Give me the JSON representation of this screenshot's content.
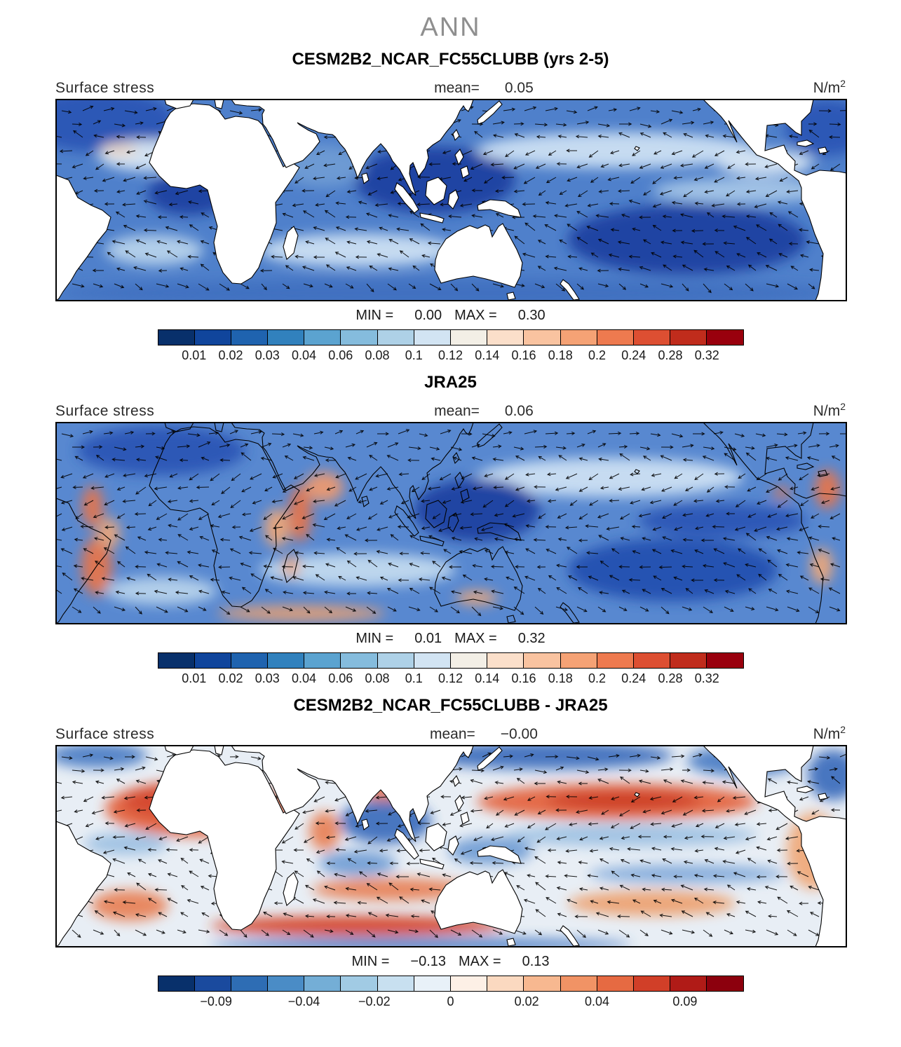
{
  "figure": {
    "suptitle": "ANN"
  },
  "panels": [
    {
      "title": "CESM2B2_NCAR_FC55CLUBB (yrs 2-5)",
      "field_label": "Surface stress",
      "mean_label": "mean=",
      "mean_value": "0.05",
      "units_base": "N/m",
      "units_exp": "2",
      "min_label": "MIN =",
      "min_value": "0.00",
      "max_label": "MAX =",
      "max_value": "0.30",
      "colorbar": {
        "colors": [
          "#08306b",
          "#10459c",
          "#1f63af",
          "#3181bd",
          "#5ba3d0",
          "#85bcdd",
          "#aed1e7",
          "#d2e4f3",
          "#f3efe6",
          "#fbdfca",
          "#f9c3a0",
          "#f5a275",
          "#ee7a4f",
          "#dd4f32",
          "#c02c1c",
          "#99000d"
        ],
        "labels": [
          "0.01",
          "0.02",
          "0.03",
          "0.04",
          "0.06",
          "0.08",
          "0.1",
          "0.12",
          "0.14",
          "0.16",
          "0.18",
          "0.2",
          "0.24",
          "0.28",
          "0.32"
        ]
      }
    },
    {
      "title": "JRA25",
      "field_label": "Surface stress",
      "mean_label": "mean=",
      "mean_value": "0.06",
      "units_base": "N/m",
      "units_exp": "2",
      "min_label": "MIN =",
      "min_value": "0.01",
      "max_label": "MAX =",
      "max_value": "0.32",
      "colorbar": {
        "colors": [
          "#08306b",
          "#10459c",
          "#1f63af",
          "#3181bd",
          "#5ba3d0",
          "#85bcdd",
          "#aed1e7",
          "#d2e4f3",
          "#f3efe6",
          "#fbdfca",
          "#f9c3a0",
          "#f5a275",
          "#ee7a4f",
          "#dd4f32",
          "#c02c1c",
          "#99000d"
        ],
        "labels": [
          "0.01",
          "0.02",
          "0.03",
          "0.04",
          "0.06",
          "0.08",
          "0.1",
          "0.12",
          "0.14",
          "0.16",
          "0.18",
          "0.2",
          "0.24",
          "0.28",
          "0.32"
        ]
      }
    },
    {
      "title": "CESM2B2_NCAR_FC55CLUBB - JRA25",
      "field_label": "Surface stress",
      "mean_label": "mean=",
      "mean_value": "−0.00",
      "units_base": "N/m",
      "units_exp": "2",
      "min_label": "MIN =",
      "min_value": "−0.13",
      "max_label": "MAX =",
      "max_value": "0.13",
      "colorbar": {
        "colors": [
          "#08306b",
          "#1a4a9e",
          "#2e6db4",
          "#4a8cc6",
          "#74aed6",
          "#a1cbe4",
          "#c8e0f0",
          "#e8f1f8",
          "#fdf0e6",
          "#fbd9c0",
          "#f7b890",
          "#f19365",
          "#e66a42",
          "#d13f28",
          "#b01b17",
          "#8c000d"
        ],
        "labels": [
          "−0.09",
          "−0.04",
          "−0.02",
          "0",
          "0.02",
          "0.04",
          "0.09"
        ],
        "positions": [
          0.1,
          0.25,
          0.37,
          0.5,
          0.63,
          0.75,
          0.9
        ]
      }
    }
  ],
  "chart_data": [
    {
      "type": "heatmap",
      "panel": "top",
      "title": "CESM2B2_NCAR_FC55CLUBB (yrs 2-5)",
      "season": "ANN",
      "field": "Surface stress",
      "units": "N/m^2",
      "mean": 0.05,
      "min": 0.0,
      "max": 0.3,
      "contour_levels": [
        0.01,
        0.02,
        0.03,
        0.04,
        0.06,
        0.08,
        0.1,
        0.12,
        0.14,
        0.16,
        0.18,
        0.2,
        0.24,
        0.28,
        0.32
      ],
      "palette": [
        "#08306b",
        "#10459c",
        "#1f63af",
        "#3181bd",
        "#5ba3d0",
        "#85bcdd",
        "#aed1e7",
        "#d2e4f3",
        "#f3efe6",
        "#fbdfca",
        "#f9c3a0",
        "#f5a275",
        "#ee7a4f",
        "#dd4f32",
        "#c02c1c",
        "#99000d"
      ],
      "overlay": "surface wind stress direction vectors (arrows)",
      "coverage": "global cylindrical map, land masked white"
    },
    {
      "type": "heatmap",
      "panel": "middle",
      "title": "JRA25",
      "season": "ANN",
      "field": "Surface stress",
      "units": "N/m^2",
      "mean": 0.06,
      "min": 0.01,
      "max": 0.32,
      "contour_levels": [
        0.01,
        0.02,
        0.03,
        0.04,
        0.06,
        0.08,
        0.1,
        0.12,
        0.14,
        0.16,
        0.18,
        0.2,
        0.24,
        0.28,
        0.32
      ],
      "palette": [
        "#08306b",
        "#10459c",
        "#1f63af",
        "#3181bd",
        "#5ba3d0",
        "#85bcdd",
        "#aed1e7",
        "#d2e4f3",
        "#f3efe6",
        "#fbdfca",
        "#f9c3a0",
        "#f5a275",
        "#ee7a4f",
        "#dd4f32",
        "#c02c1c",
        "#99000d"
      ],
      "overlay": "surface wind stress direction vectors (arrows)",
      "coverage": "global cylindrical map, field shown over land and ocean"
    },
    {
      "type": "heatmap",
      "panel": "bottom",
      "title": "CESM2B2_NCAR_FC55CLUBB - JRA25",
      "season": "ANN",
      "field": "Surface stress difference",
      "units": "N/m^2",
      "mean": -0.0,
      "min": -0.13,
      "max": 0.13,
      "labeled_levels": [
        -0.09,
        -0.04,
        -0.02,
        0,
        0.02,
        0.04,
        0.09
      ],
      "palette": [
        "#08306b",
        "#1a4a9e",
        "#2e6db4",
        "#4a8cc6",
        "#74aed6",
        "#a1cbe4",
        "#c8e0f0",
        "#e8f1f8",
        "#fdf0e6",
        "#fbd9c0",
        "#f7b890",
        "#f19365",
        "#e66a42",
        "#d13f28",
        "#b01b17",
        "#8c000d"
      ],
      "overlay": "difference wind stress vectors (arrows)",
      "coverage": "global cylindrical map, land masked white"
    }
  ]
}
